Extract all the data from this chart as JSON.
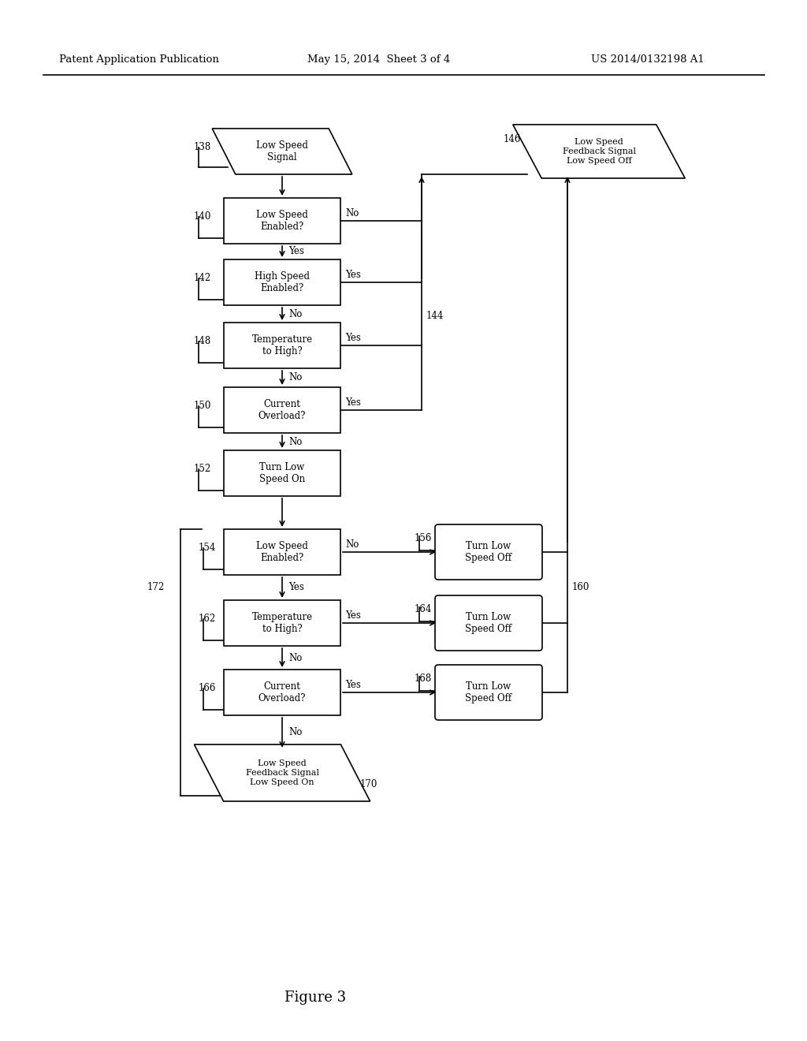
{
  "bg_color": "#ffffff",
  "header_left": "Patent Application Publication",
  "header_mid": "May 15, 2014  Sheet 3 of 4",
  "header_right": "US 2014/0132198 A1",
  "figure_label": "Figure 3"
}
